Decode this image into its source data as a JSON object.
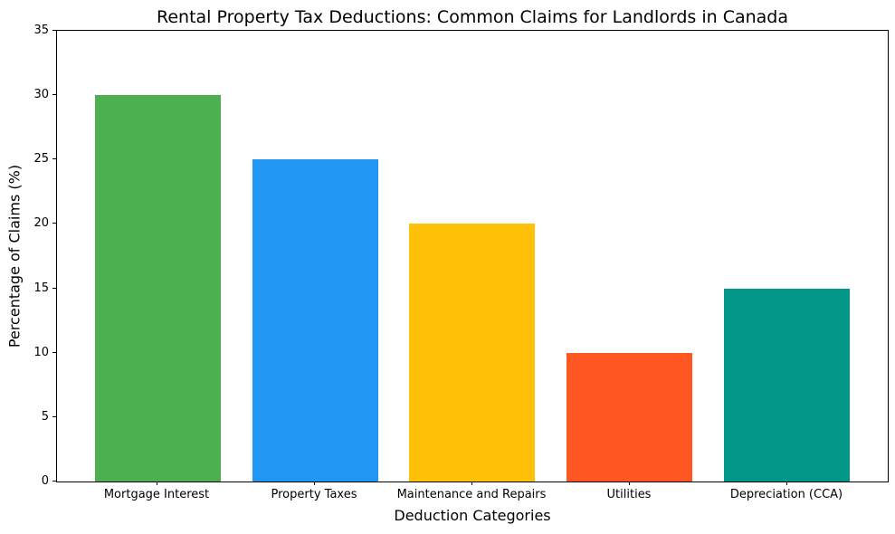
{
  "chart_data": {
    "type": "bar",
    "title": "Rental Property Tax Deductions: Common Claims for Landlords in Canada",
    "xlabel": "Deduction Categories",
    "ylabel": "Percentage of Claims (%)",
    "categories": [
      "Mortgage Interest",
      "Property Taxes",
      "Maintenance and Repairs",
      "Utilities",
      "Depreciation (CCA)"
    ],
    "values": [
      30,
      25,
      20,
      10,
      15
    ],
    "bar_colors": [
      "#4caf50",
      "#2196f3",
      "#ffc107",
      "#ff5722",
      "#009688"
    ],
    "ylim": [
      0,
      35
    ],
    "yticks": [
      0,
      5,
      10,
      15,
      20,
      25,
      30,
      35
    ],
    "bar_width_fraction": 0.8,
    "x_margin_fraction": 0.24,
    "grid": false,
    "legend_position": "none",
    "background_color": "#ffffff",
    "spine_color": "#000000"
  }
}
